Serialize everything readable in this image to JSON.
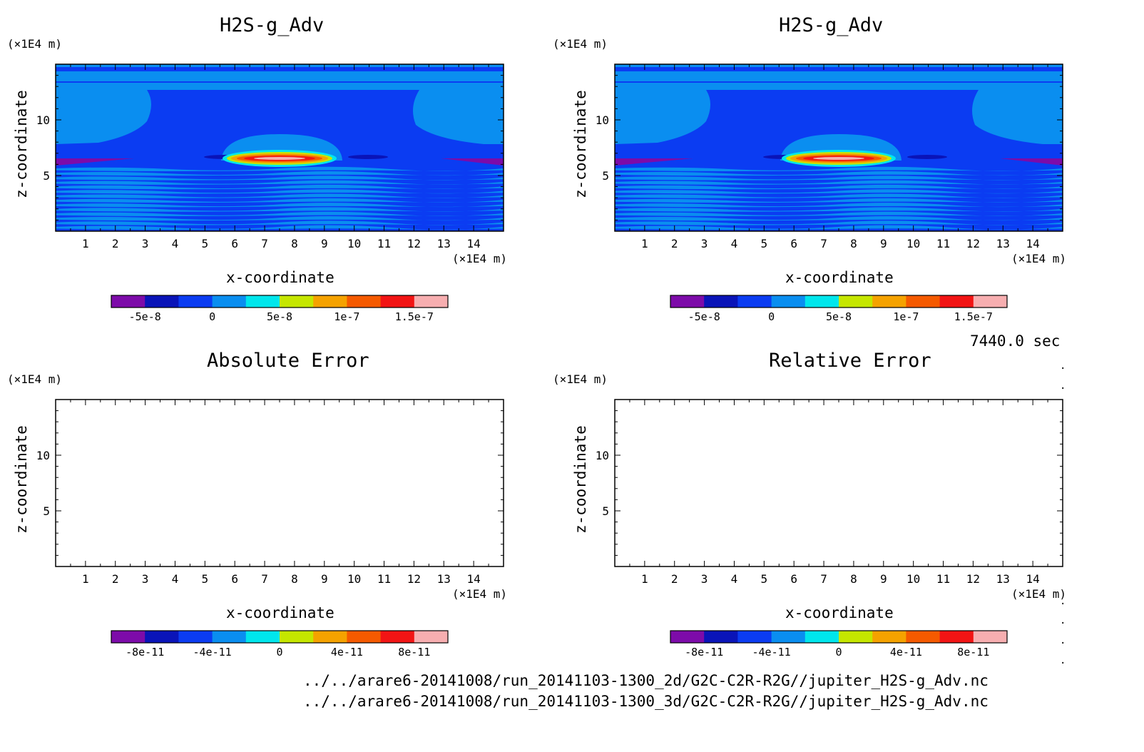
{
  "time_label": "7440.0 sec",
  "file_paths": [
    "../../arare6-20141008/run_20141103-1300_2d/G2C-C2R-R2G//jupiter_H2S-g_Adv.nc",
    "../../arare6-20141008/run_20141103-1300_3d/G2C-C2R-R2G//jupiter_H2S-g_Adv.nc"
  ],
  "colors": {
    "levels": [
      "#7d0ba9",
      "#0a14b8",
      "#0b3cf2",
      "#0a8ef0",
      "#00e6ec",
      "#c5e600",
      "#f5a200",
      "#f55a00",
      "#f21414",
      "#f7aeb0"
    ]
  },
  "chart_data": [
    {
      "type": "heatmap",
      "title": "H2S-g_Adv",
      "xlabel": "x-coordinate",
      "ylabel": "z-coordinate",
      "x_unit": "(×1E4 m)",
      "y_unit": "(×1E4 m)",
      "xlim": [
        0,
        15
      ],
      "ylim": [
        0,
        15
      ],
      "x_ticks": [
        1,
        2,
        3,
        4,
        5,
        6,
        7,
        8,
        9,
        10,
        11,
        12,
        13,
        14
      ],
      "y_ticks": [
        5,
        10
      ],
      "field": "advection tendency of H2S gas (contour fill)",
      "colorbar": {
        "range": [
          -7.5e-08,
          1.75e-07
        ],
        "tick_values": [
          -5e-08,
          0,
          5e-08,
          1e-07,
          1.5e-07
        ],
        "tick_labels": [
          "-5e-8",
          "0",
          "5e-8",
          "1e-7",
          "1.5e-7"
        ]
      }
    },
    {
      "type": "heatmap",
      "title": "H2S-g_Adv",
      "xlabel": "x-coordinate",
      "ylabel": "z-coordinate",
      "x_unit": "(×1E4 m)",
      "y_unit": "(×1E4 m)",
      "xlim": [
        0,
        15
      ],
      "ylim": [
        0,
        15
      ],
      "x_ticks": [
        1,
        2,
        3,
        4,
        5,
        6,
        7,
        8,
        9,
        10,
        11,
        12,
        13,
        14
      ],
      "y_ticks": [
        5,
        10
      ],
      "field": "advection tendency of H2S gas (contour fill)",
      "colorbar": {
        "range": [
          -7.5e-08,
          1.75e-07
        ],
        "tick_values": [
          -5e-08,
          0,
          5e-08,
          1e-07,
          1.5e-07
        ],
        "tick_labels": [
          "-5e-8",
          "0",
          "5e-8",
          "1e-7",
          "1.5e-7"
        ]
      }
    },
    {
      "type": "heatmap",
      "title": "Absolute Error",
      "xlabel": "x-coordinate",
      "ylabel": "z-coordinate",
      "x_unit": "(×1E4 m)",
      "y_unit": "(×1E4 m)",
      "xlim": [
        0,
        15
      ],
      "ylim": [
        0,
        15
      ],
      "x_ticks": [
        1,
        2,
        3,
        4,
        5,
        6,
        7,
        8,
        9,
        10,
        11,
        12,
        13,
        14
      ],
      "y_ticks": [
        5,
        10
      ],
      "field": "empty (no error)",
      "colorbar": {
        "range": [
          -1e-10,
          1e-10
        ],
        "tick_values": [
          -8e-11,
          -4e-11,
          0,
          4e-11,
          8e-11
        ],
        "tick_labels": [
          "-8e-11",
          "-4e-11",
          "0",
          "4e-11",
          "8e-11"
        ]
      }
    },
    {
      "type": "heatmap",
      "title": "Relative Error",
      "xlabel": "x-coordinate",
      "ylabel": "z-coordinate",
      "x_unit": "(×1E4 m)",
      "y_unit": "(×1E4 m)",
      "xlim": [
        0,
        15
      ],
      "ylim": [
        0,
        15
      ],
      "x_ticks": [
        1,
        2,
        3,
        4,
        5,
        6,
        7,
        8,
        9,
        10,
        11,
        12,
        13,
        14
      ],
      "y_ticks": [
        5,
        10
      ],
      "field": "empty (no error)",
      "colorbar": {
        "range": [
          -1e-10,
          1e-10
        ],
        "tick_values": [
          -8e-11,
          -4e-11,
          0,
          4e-11,
          8e-11
        ],
        "tick_labels": [
          "-8e-11",
          "-4e-11",
          "0",
          "4e-11",
          "8e-11"
        ]
      }
    }
  ]
}
